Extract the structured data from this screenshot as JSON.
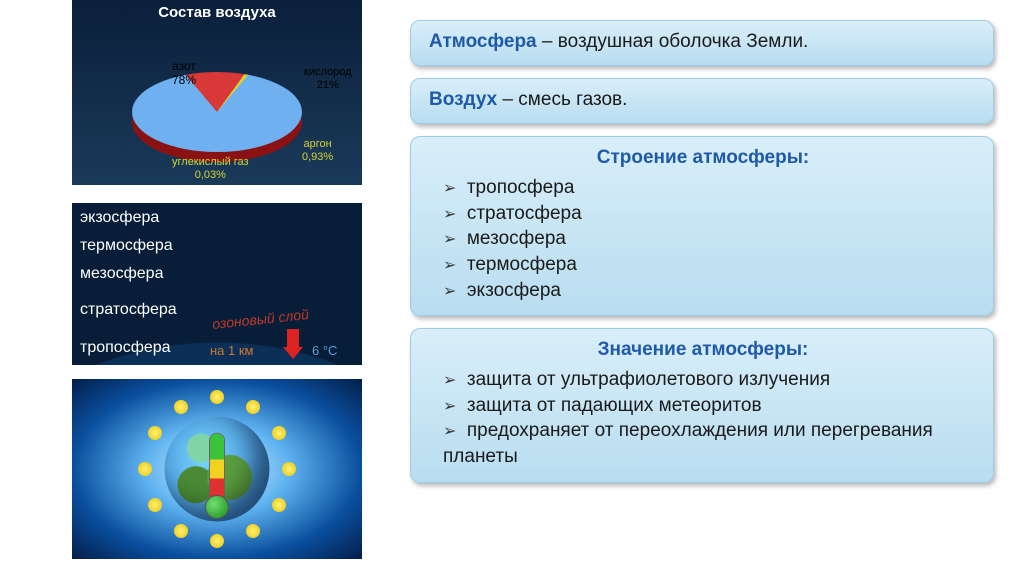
{
  "pie": {
    "title": "Состав воздуха",
    "slices": [
      {
        "name": "азот",
        "pct": "78%",
        "color": "#6fb0f0"
      },
      {
        "name": "кислород",
        "pct": "21%",
        "color": "#d93838"
      },
      {
        "name": "аргон",
        "pct": "0,93%",
        "color": "#d6d432"
      },
      {
        "name": "углекислый газ",
        "pct": "0,03%",
        "color": "#d6d432"
      }
    ],
    "bg_gradient": [
      "#0a1f3a",
      "#1a3a5a"
    ]
  },
  "layers": {
    "items": [
      "экзосфера",
      "термосфера",
      "мезосфера",
      "стратосфера",
      "тропосфера"
    ],
    "ozone_label": "озоновый слой",
    "per_km": "на 1 км",
    "temp_drop": "6 °С",
    "arc_colors": [
      "#071d38",
      "#0c2f58",
      "#153f6e",
      "#214f82",
      "#2f5f95",
      "#3b6fa8"
    ]
  },
  "earth": {
    "sun_dots": 12,
    "globe_colors": {
      "ocean": "#2a6fc7",
      "land": "#5a9e3f"
    },
    "thermo_colors": [
      "#e03030",
      "#f4d020",
      "#3ac43a"
    ]
  },
  "cards": {
    "def1": {
      "term": "Атмосфера",
      "rest": " – воздушная оболочка Земли."
    },
    "def2": {
      "term": "Воздух",
      "rest": " – смесь газов."
    },
    "structure": {
      "title": "Строение атмосферы:",
      "items": [
        "тропосфера",
        "стратосфера",
        "мезосфера",
        "термосфера",
        "экзосфера"
      ]
    },
    "importance": {
      "title": "Значение атмосферы:",
      "items": [
        "защита от ультрафиолетового излучения",
        "защита от падающих метеоритов",
        "предохраняет от переохлаждения или перегревания планеты"
      ]
    },
    "card_bg": [
      "#d9eef9",
      "#b8ddf0"
    ],
    "highlight_color": "#1f5aa8"
  }
}
